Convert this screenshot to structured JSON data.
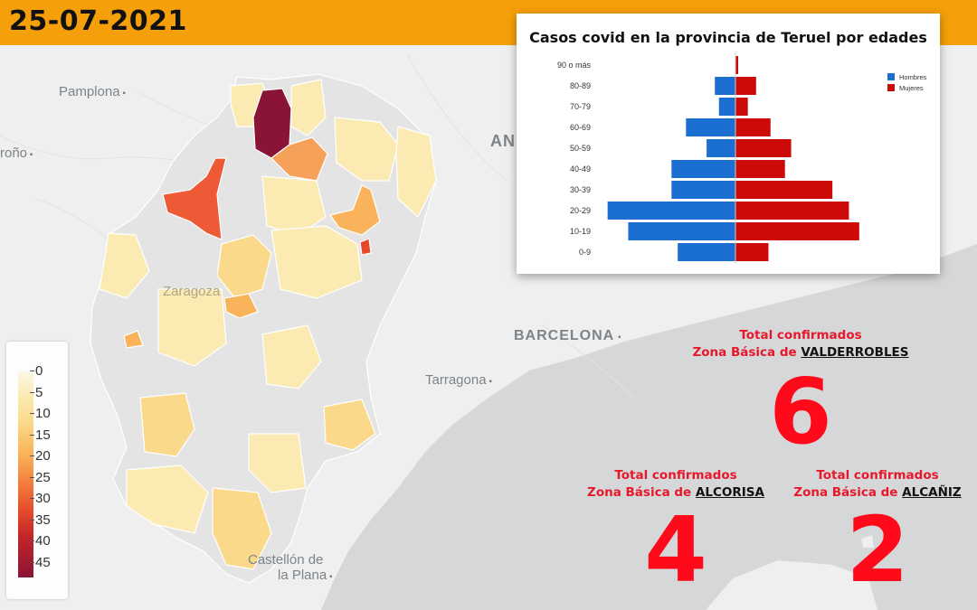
{
  "date": "25-07-2021",
  "cities": [
    {
      "name": "Pamplona",
      "dot": true
    },
    {
      "name": "roño",
      "dot": true
    },
    {
      "name": "AN",
      "dot": false
    },
    {
      "name": "Zaragoza",
      "dot": false
    },
    {
      "name": "BARCELONA",
      "dot": true
    },
    {
      "name": "Tarragona",
      "dot": true
    },
    {
      "name": "Castellón de",
      "dot": false
    },
    {
      "name": "la Plana",
      "dot": true
    }
  ],
  "legend": {
    "ticks": [
      "0",
      "5",
      "10",
      "15",
      "20",
      "25",
      "30",
      "35",
      "40",
      "45"
    ],
    "color_ramp": [
      "#fbf7e6",
      "#fbeab2",
      "#fbd98a",
      "#f9b35a",
      "#f47a3c",
      "#e44a2a",
      "#c42528",
      "#8a1436"
    ]
  },
  "colors": {
    "header": "#f5a00a",
    "hombres": "#1a6fd1",
    "mujeres": "#cc0a0a",
    "stat_red": "#ff0a1a"
  },
  "chart_data": {
    "type": "bar",
    "orientation": "horizontal-pyramid",
    "title": "Casos covid en la provincia de Teruel por edades",
    "categories": [
      "90 o más",
      "80-89",
      "70-79",
      "60-69",
      "50-59",
      "40-49",
      "30-39",
      "20-29",
      "10-19",
      "0-9"
    ],
    "series": [
      {
        "name": "Hombres",
        "values": [
          0,
          10,
          8,
          24,
          14,
          31,
          31,
          62,
          52,
          28
        ]
      },
      {
        "name": "Mujeres",
        "values": [
          1,
          10,
          6,
          17,
          27,
          24,
          47,
          55,
          60,
          16
        ]
      }
    ],
    "legend_position": "top-right"
  },
  "stats": [
    {
      "line1": "Total confirmados",
      "prefix": "Zona Básica de ",
      "zone": "VALDERROBLES",
      "value": "6"
    },
    {
      "line1": "Total confirmados",
      "prefix": "Zona Básica de ",
      "zone": "ALCORISA",
      "value": "4"
    },
    {
      "line1": "Total confirmados",
      "prefix": "Zona Básica de ",
      "zone": "ALCAÑIZ",
      "value": "2"
    }
  ]
}
